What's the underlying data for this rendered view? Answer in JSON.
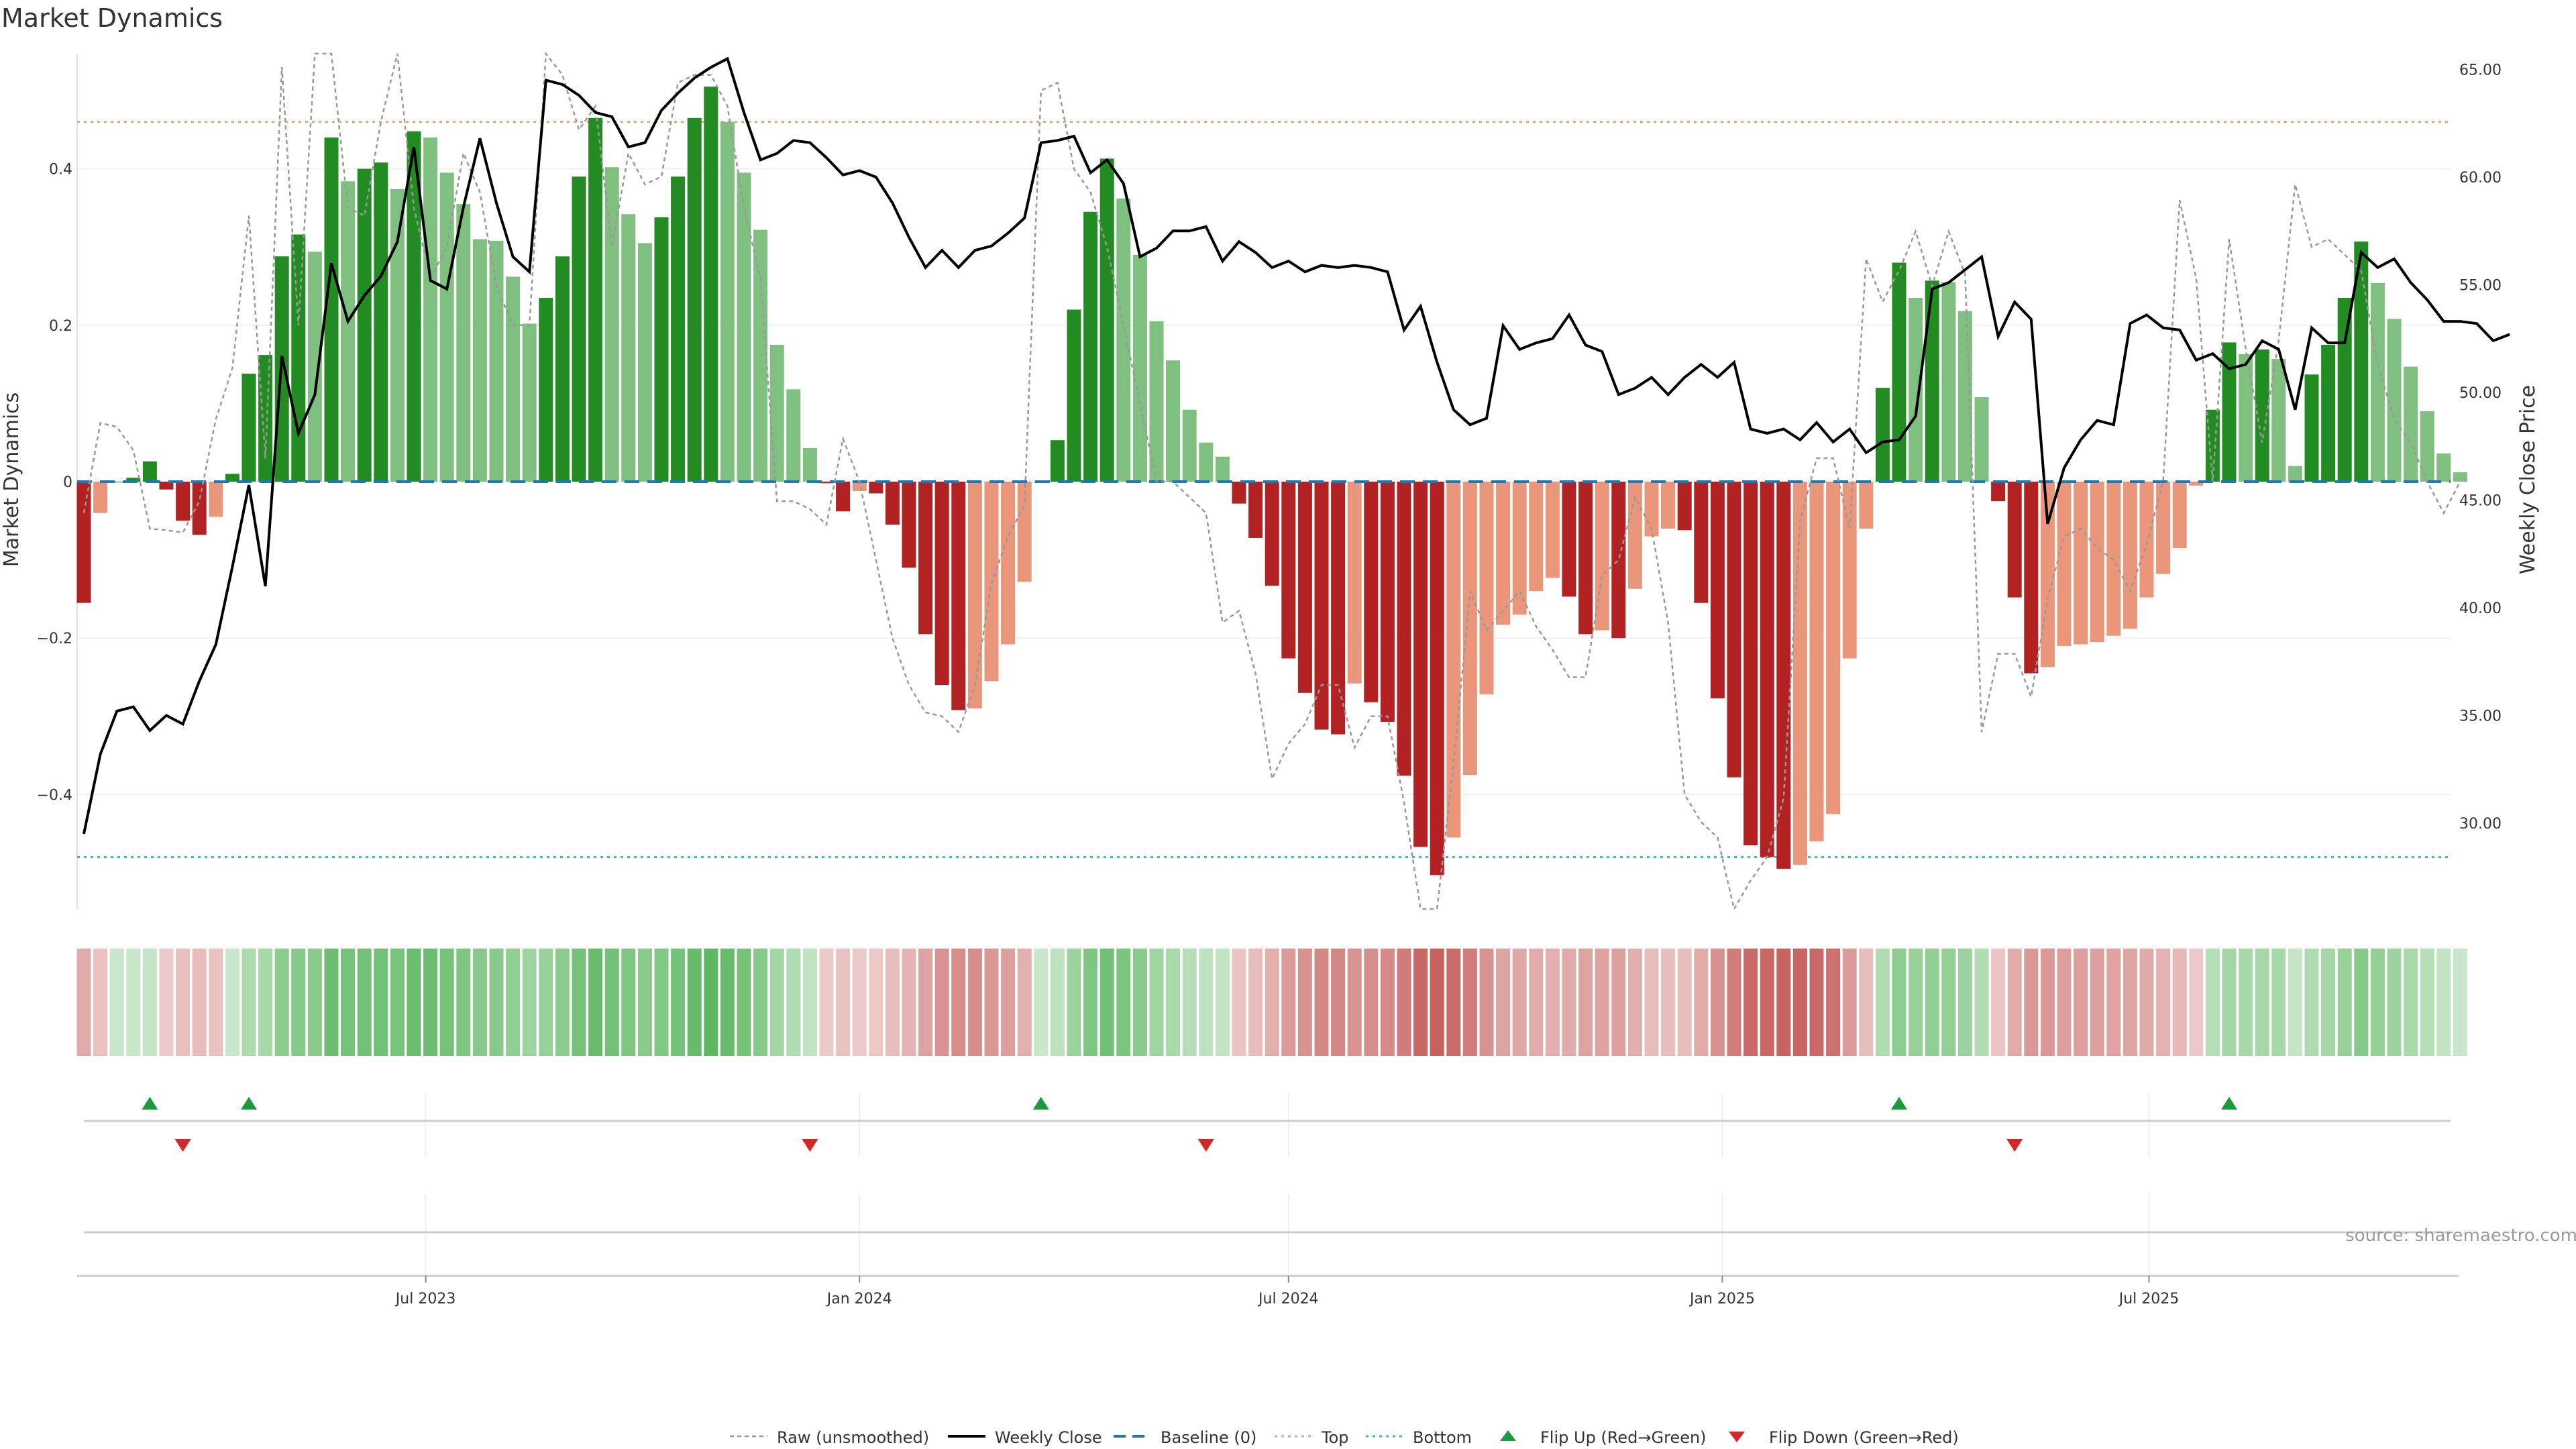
{
  "title": "Market Dynamics",
  "source": "source: sharemaestro.com",
  "colors": {
    "green_strong": "#228b22",
    "green_light": "#7fbf7f",
    "red_strong": "#b22222",
    "red_light": "#e9967a",
    "price": "#000000",
    "raw": "#999999",
    "baseline": "#1f77b4",
    "top": "#e8a87c",
    "bottom": "#3cb4c8",
    "flip_up": "#1a9c3c",
    "flip_down": "#d62728"
  },
  "chart_data": {
    "type": "bar+line",
    "title": "Market Dynamics",
    "ylabel": "Market Dynamics",
    "y2label": "Weekly Close Price",
    "ylim": [
      -0.55,
      0.55
    ],
    "y2lim": [
      27.5,
      67.3
    ],
    "yticks": [
      -0.4,
      -0.2,
      0,
      0.2,
      0.4
    ],
    "ytick_labels": [
      "−0.4",
      "−0.2",
      "0",
      "0.2",
      "0.4"
    ],
    "y2ticks": [
      30,
      35,
      40,
      45,
      50,
      55,
      60,
      65
    ],
    "y2tick_labels": [
      "30.00",
      "35.00",
      "40.00",
      "45.00",
      "50.00",
      "55.00",
      "60.00",
      "65.00"
    ],
    "x_start": "2023-02-06",
    "x_tick_dates": [
      "2023-07-01",
      "2024-01-01",
      "2024-07-01",
      "2025-01-01",
      "2025-07-01"
    ],
    "x_tick_labels": [
      "Jul 2023",
      "Jan 2024",
      "Jul 2024",
      "Jan 2025",
      "Jul 2025"
    ],
    "top_level": 0.46,
    "bottom_level": -0.48,
    "baseline": 0,
    "dynamics": [
      -0.155,
      -0.04,
      0.0,
      0.005,
      0.026,
      -0.01,
      -0.05,
      -0.068,
      -0.045,
      0.01,
      0.138,
      0.162,
      0.288,
      0.316,
      0.294,
      0.44,
      0.384,
      0.4,
      0.408,
      0.374,
      0.448,
      0.44,
      0.395,
      0.355,
      0.31,
      0.308,
      0.262,
      0.202,
      0.235,
      0.288,
      0.39,
      0.465,
      0.402,
      0.342,
      0.305,
      0.338,
      0.39,
      0.465,
      0.505,
      0.46,
      0.395,
      0.322,
      0.175,
      0.118,
      0.043,
      -0.002,
      -0.038,
      -0.012,
      -0.015,
      -0.055,
      -0.11,
      -0.195,
      -0.26,
      -0.292,
      -0.29,
      -0.255,
      -0.208,
      -0.128,
      0.0,
      0.053,
      0.22,
      0.345,
      0.413,
      0.362,
      0.29,
      0.205,
      0.155,
      0.092,
      0.05,
      0.032,
      -0.028,
      -0.072,
      -0.133,
      -0.226,
      -0.27,
      -0.317,
      -0.323,
      -0.258,
      -0.282,
      -0.307,
      -0.376,
      -0.467,
      -0.503,
      -0.455,
      -0.375,
      -0.272,
      -0.183,
      -0.17,
      -0.14,
      -0.123,
      -0.147,
      -0.195,
      -0.19,
      -0.2,
      -0.137,
      -0.07,
      -0.06,
      -0.062,
      -0.155,
      -0.277,
      -0.378,
      -0.465,
      -0.48,
      -0.495,
      -0.49,
      -0.46,
      -0.425,
      -0.226,
      -0.06,
      0.12,
      0.28,
      0.235,
      0.257,
      0.255,
      0.218,
      0.108,
      -0.025,
      -0.148,
      -0.245,
      -0.237,
      -0.21,
      -0.208,
      -0.205,
      -0.197,
      -0.188,
      -0.148,
      -0.118,
      -0.085,
      -0.005,
      0.092,
      0.178,
      0.163,
      0.169,
      0.157,
      0.02,
      0.137,
      0.175,
      0.235,
      0.307,
      0.254,
      0.208,
      0.147,
      0.09,
      0.036,
      0.012
    ],
    "price": [
      29.5,
      33.2,
      35.2,
      35.4,
      34.3,
      35.0,
      34.6,
      36.6,
      38.3,
      41.9,
      45.7,
      41.0,
      51.7,
      48.1,
      49.9,
      56.0,
      53.3,
      54.5,
      55.4,
      57.0,
      61.4,
      55.2,
      54.8,
      58.6,
      61.8,
      58.8,
      56.3,
      55.6,
      64.5,
      64.3,
      63.8,
      63.0,
      62.8,
      61.4,
      61.6,
      63.1,
      63.9,
      64.6,
      65.1,
      65.5,
      63.0,
      60.8,
      61.1,
      61.7,
      61.6,
      60.9,
      60.1,
      60.3,
      60.0,
      58.8,
      57.2,
      55.8,
      56.6,
      55.8,
      56.6,
      56.8,
      57.4,
      58.1,
      61.6,
      61.7,
      61.9,
      60.2,
      60.8,
      59.7,
      56.3,
      56.7,
      57.5,
      57.5,
      57.7,
      56.1,
      57.0,
      56.5,
      55.8,
      56.1,
      55.6,
      55.9,
      55.8,
      55.9,
      55.8,
      55.6,
      52.9,
      54.0,
      51.4,
      49.2,
      48.5,
      48.8,
      53.1,
      52.0,
      52.3,
      52.5,
      53.6,
      52.2,
      51.9,
      49.9,
      50.2,
      50.7,
      49.9,
      50.7,
      51.3,
      50.7,
      51.4,
      48.3,
      48.1,
      48.3,
      47.8,
      48.6,
      47.7,
      48.3,
      47.2,
      47.7,
      47.8,
      48.9,
      54.8,
      55.1,
      55.7,
      56.3,
      52.6,
      54.2,
      53.4,
      43.9,
      46.5,
      47.8,
      48.7,
      48.5,
      53.2,
      53.6,
      53.0,
      52.9,
      51.5,
      51.8,
      51.1,
      51.3,
      52.4,
      52.0,
      49.2,
      53.0,
      52.3,
      52.3,
      56.5,
      55.8,
      56.2,
      55.1,
      54.3,
      53.3,
      53.3,
      53.2,
      52.4,
      52.7
    ],
    "raw": [
      -0.04,
      0.075,
      0.07,
      0.04,
      -0.06,
      -0.062,
      -0.065,
      -0.025,
      0.08,
      0.145,
      0.34,
      0.03,
      0.53,
      0.2,
      0.55,
      0.58,
      0.35,
      0.34,
      0.46,
      0.58,
      0.35,
      0.26,
      0.3,
      0.42,
      0.37,
      0.25,
      0.2,
      0.2,
      0.57,
      0.52,
      0.45,
      0.48,
      0.3,
      0.42,
      0.38,
      0.39,
      0.51,
      0.52,
      0.52,
      0.48,
      0.35,
      0.26,
      -0.025,
      -0.025,
      -0.035,
      -0.055,
      0.055,
      0.0,
      -0.1,
      -0.2,
      -0.26,
      -0.295,
      -0.3,
      -0.32,
      -0.26,
      -0.13,
      -0.07,
      -0.03,
      0.5,
      0.51,
      0.4,
      0.37,
      0.3,
      0.2,
      0.1,
      0.0,
      0.0,
      -0.02,
      -0.04,
      -0.18,
      -0.165,
      -0.245,
      -0.38,
      -0.335,
      -0.31,
      -0.26,
      -0.26,
      -0.34,
      -0.3,
      -0.3,
      -0.41,
      -0.55,
      -0.57,
      -0.36,
      -0.14,
      -0.19,
      -0.165,
      -0.14,
      -0.185,
      -0.215,
      -0.25,
      -0.25,
      -0.12,
      -0.1,
      -0.02,
      -0.06,
      -0.18,
      -0.4,
      -0.435,
      -0.455,
      -0.55,
      -0.51,
      -0.48,
      -0.405,
      -0.05,
      0.03,
      0.03,
      -0.06,
      0.285,
      0.23,
      0.27,
      0.32,
      0.25,
      0.32,
      0.265,
      -0.32,
      -0.22,
      -0.22,
      -0.275,
      -0.15,
      -0.07,
      -0.06,
      -0.085,
      -0.1,
      -0.14,
      -0.08,
      0.0,
      0.36,
      0.26,
      0.0,
      0.31,
      0.17,
      0.05,
      0.18,
      0.38,
      0.3,
      0.31,
      0.29,
      0.27,
      0.15,
      0.08,
      0.05,
      0.0,
      -0.04,
      0.0
    ],
    "flip_up_dates": [
      "2023-03-06",
      "2023-04-17",
      "2024-03-18",
      "2025-03-17",
      "2025-08-04"
    ],
    "flip_down_dates": [
      "2023-03-20",
      "2023-12-11",
      "2024-05-27",
      "2025-05-05"
    ],
    "legend": [
      "Raw (unsmoothed)",
      "Weekly Close",
      "Baseline (0)",
      "Top",
      "Bottom",
      "Flip Up (Red→Green)",
      "Flip Down (Green→Red)"
    ]
  }
}
